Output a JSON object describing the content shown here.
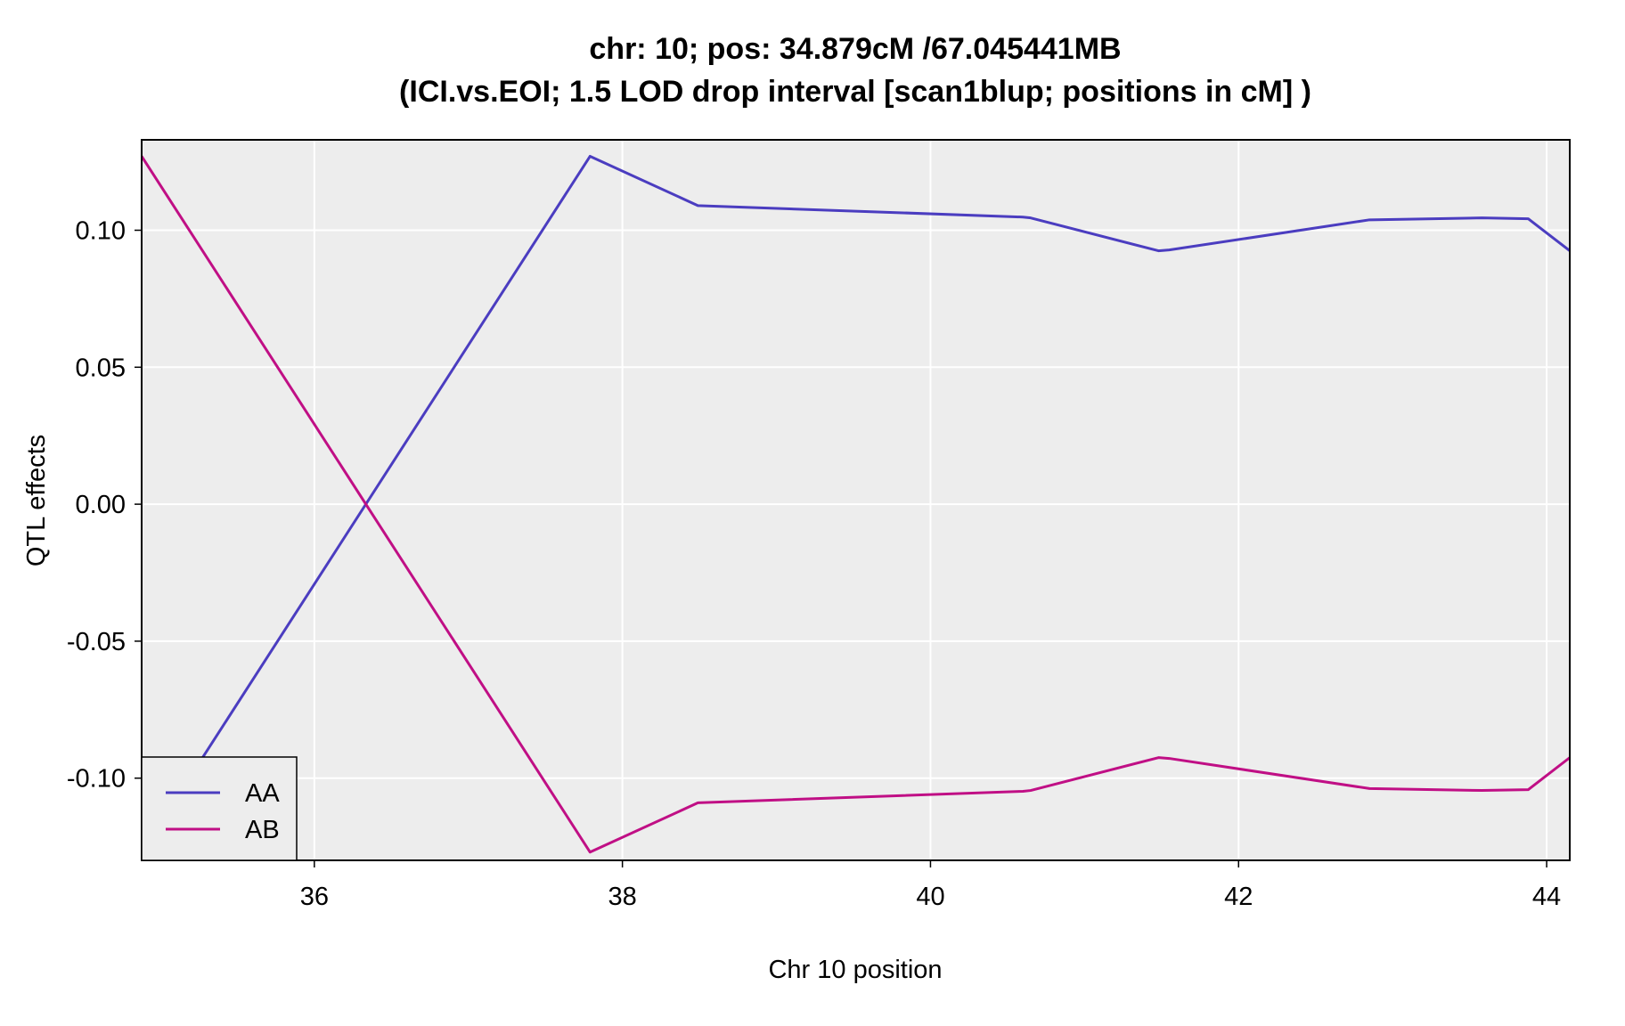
{
  "chart_data": {
    "type": "line",
    "title": "chr: 10; pos: 34.879cM /67.045441MB",
    "subtitle": "(ICI.vs.EOI; 1.5 LOD drop interval [scan1blup; positions in cM] )",
    "xlabel": "Chr 10 position",
    "ylabel": "QTL effects",
    "xlim": [
      34.879,
      44.15
    ],
    "ylim": [
      -0.13,
      0.133
    ],
    "xticks": [
      36,
      38,
      40,
      42,
      44
    ],
    "xtick_labels": [
      "36",
      "38",
      "40",
      "42",
      "44"
    ],
    "yticks": [
      -0.1,
      -0.05,
      0.0,
      0.05,
      0.1
    ],
    "ytick_labels": [
      "-0.10",
      "-0.05",
      "0.00",
      "0.05",
      "0.10"
    ],
    "grid": true,
    "legend_position": "bottom-left",
    "background_color": "#ededed",
    "series": [
      {
        "name": "AA",
        "color": "#4b3dc0",
        "x": [
          34.879,
          37.79,
          38.49,
          40.6,
          40.65,
          41.48,
          41.55,
          42.85,
          43.58,
          43.88,
          44.15
        ],
        "y": [
          -0.127,
          0.127,
          0.109,
          0.1048,
          0.1045,
          0.0925,
          0.0928,
          0.1038,
          0.1045,
          0.1042,
          0.0925
        ]
      },
      {
        "name": "AB",
        "color": "#c00f85",
        "x": [
          34.879,
          37.79,
          38.49,
          40.6,
          40.65,
          41.48,
          41.55,
          42.85,
          43.58,
          43.88,
          44.15
        ],
        "y": [
          0.127,
          -0.127,
          -0.109,
          -0.1048,
          -0.1045,
          -0.0925,
          -0.0928,
          -0.1038,
          -0.1045,
          -0.1042,
          -0.0925
        ]
      }
    ]
  }
}
